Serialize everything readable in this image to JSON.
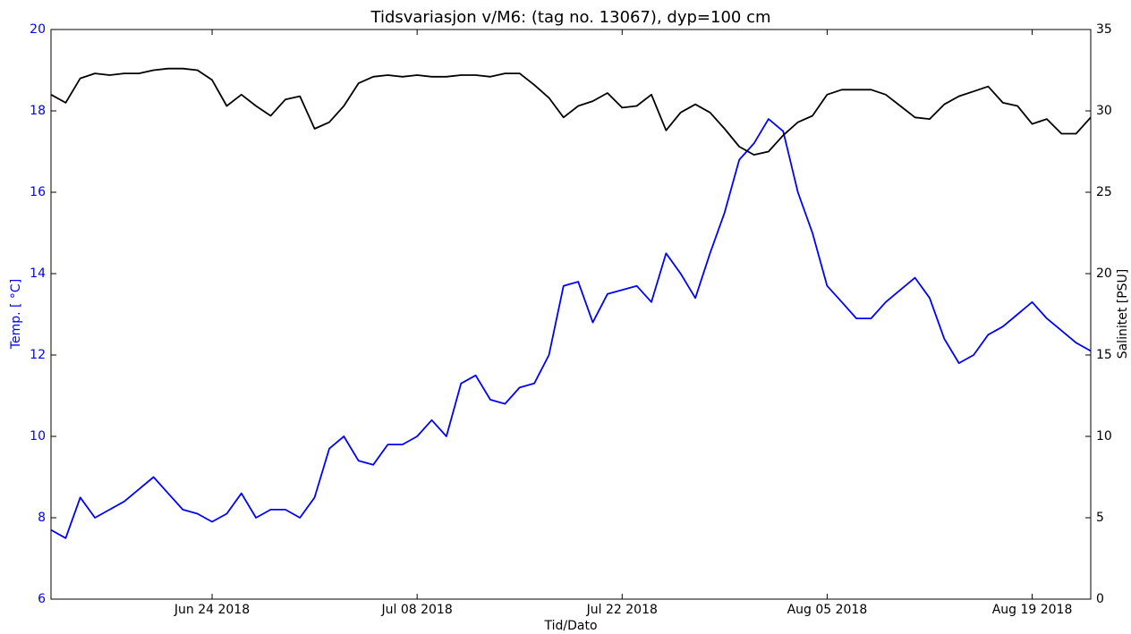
{
  "chart_data": {
    "type": "line",
    "title": "Tidsvariasjon v/M6: (tag no. 13067), dyp=100 cm",
    "xlabel": "Tid/Dato",
    "ylabel": "Temp. [ °C]",
    "y2label": "Salinitet [PSU]",
    "x": [
      "2018-06-13",
      "2018-06-14",
      "2018-06-15",
      "2018-06-16",
      "2018-06-17",
      "2018-06-18",
      "2018-06-19",
      "2018-06-20",
      "2018-06-21",
      "2018-06-22",
      "2018-06-23",
      "2018-06-24",
      "2018-06-25",
      "2018-06-26",
      "2018-06-27",
      "2018-06-28",
      "2018-06-29",
      "2018-06-30",
      "2018-07-01",
      "2018-07-02",
      "2018-07-03",
      "2018-07-04",
      "2018-07-05",
      "2018-07-06",
      "2018-07-07",
      "2018-07-08",
      "2018-07-09",
      "2018-07-10",
      "2018-07-11",
      "2018-07-12",
      "2018-07-13",
      "2018-07-14",
      "2018-07-15",
      "2018-07-16",
      "2018-07-17",
      "2018-07-18",
      "2018-07-19",
      "2018-07-20",
      "2018-07-21",
      "2018-07-22",
      "2018-07-23",
      "2018-07-24",
      "2018-07-25",
      "2018-07-26",
      "2018-07-27",
      "2018-07-28",
      "2018-07-29",
      "2018-07-30",
      "2018-07-31",
      "2018-08-01",
      "2018-08-02",
      "2018-08-03",
      "2018-08-04",
      "2018-08-05",
      "2018-08-06",
      "2018-08-07",
      "2018-08-08",
      "2018-08-09",
      "2018-08-10",
      "2018-08-11",
      "2018-08-12",
      "2018-08-13",
      "2018-08-14",
      "2018-08-15",
      "2018-08-16",
      "2018-08-17",
      "2018-08-18",
      "2018-08-19",
      "2018-08-20",
      "2018-08-21",
      "2018-08-22",
      "2018-08-23"
    ],
    "series": [
      {
        "name": "Temp.",
        "color": "#0000ff",
        "axis": "y",
        "values": [
          7.7,
          7.5,
          8.5,
          8.0,
          8.2,
          8.4,
          8.7,
          9.0,
          8.6,
          8.2,
          8.1,
          7.9,
          8.1,
          8.6,
          8.0,
          8.2,
          8.2,
          8.0,
          8.5,
          9.7,
          10.0,
          9.4,
          9.3,
          9.8,
          9.8,
          10.0,
          10.4,
          10.0,
          11.3,
          11.5,
          10.9,
          10.8,
          11.2,
          11.3,
          12.0,
          13.7,
          13.8,
          12.8,
          13.5,
          13.6,
          13.7,
          13.3,
          14.5,
          14.0,
          13.4,
          14.5,
          15.5,
          16.8,
          17.2,
          17.8,
          17.5,
          16.0,
          15.0,
          13.7,
          13.3,
          12.9,
          12.9,
          13.3,
          13.6,
          13.9,
          13.4,
          12.4,
          11.8,
          12.0,
          12.5,
          12.7,
          13.0,
          13.3,
          12.9,
          12.6,
          12.3,
          12.1
        ]
      },
      {
        "name": "Salinitet",
        "color": "#000000",
        "axis": "y2",
        "values": [
          31.0,
          30.5,
          32.0,
          32.3,
          32.2,
          32.3,
          32.3,
          32.5,
          32.6,
          32.6,
          32.5,
          31.9,
          30.3,
          31.0,
          30.3,
          29.7,
          30.7,
          30.9,
          28.9,
          29.3,
          30.3,
          31.7,
          32.1,
          32.2,
          32.1,
          32.2,
          32.1,
          32.1,
          32.2,
          32.2,
          32.1,
          32.3,
          32.3,
          31.6,
          30.8,
          29.6,
          30.3,
          30.6,
          31.1,
          30.2,
          30.3,
          31.0,
          28.8,
          29.9,
          30.4,
          29.9,
          28.9,
          27.8,
          27.3,
          27.5,
          28.5,
          29.3,
          29.7,
          31.0,
          31.3,
          31.3,
          31.3,
          31.0,
          30.3,
          29.6,
          29.5,
          30.4,
          30.9,
          31.2,
          31.5,
          30.5,
          30.3,
          29.2,
          29.5,
          28.6,
          28.6,
          29.6
        ]
      }
    ],
    "xlim": [
      "2018-06-13",
      "2018-08-23"
    ],
    "xticks": [
      {
        "value": "2018-06-24",
        "label": "Jun 24 2018"
      },
      {
        "value": "2018-07-08",
        "label": "Jul 08 2018"
      },
      {
        "value": "2018-07-22",
        "label": "Jul 22 2018"
      },
      {
        "value": "2018-08-05",
        "label": "Aug 05 2018"
      },
      {
        "value": "2018-08-19",
        "label": "Aug 19 2018"
      }
    ],
    "ylim": [
      6,
      20
    ],
    "yticks": [
      6,
      8,
      10,
      12,
      14,
      16,
      18,
      20
    ],
    "y2lim": [
      0,
      35
    ],
    "y2ticks": [
      0,
      5,
      10,
      15,
      20,
      25,
      30,
      35
    ],
    "ycolor": "#0000ff",
    "y2color": "#000000",
    "grid": false
  }
}
